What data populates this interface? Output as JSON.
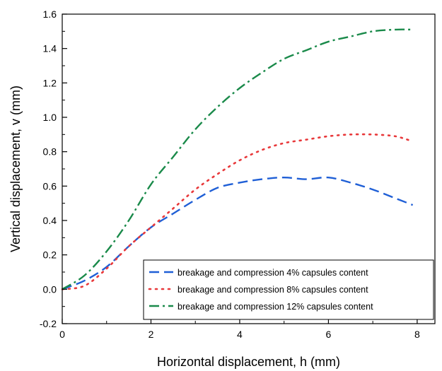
{
  "chart_data": {
    "type": "line",
    "xlabel": "Horizontal displacement, h (mm)",
    "ylabel": "Vertical  displacement, v (mm)",
    "xlim": [
      0,
      8.4
    ],
    "ylim": [
      -0.2,
      1.6
    ],
    "xticks": [
      "0",
      "2",
      "4",
      "6",
      "8"
    ],
    "yticks": [
      "-0.2",
      "0.0",
      "0.2",
      "0.4",
      "0.6",
      "0.8",
      "1.0",
      "1.2",
      "1.4",
      "1.6"
    ],
    "legend_position": "bottom-right",
    "grid": false,
    "series": [
      {
        "name": "breakage and compression 4% capsules content",
        "color": "#1f5fd6",
        "dash": "long-dash",
        "x": [
          0,
          0.5,
          1.0,
          1.5,
          2.0,
          2.5,
          3.0,
          3.5,
          4.0,
          4.5,
          5.0,
          5.5,
          6.0,
          6.5,
          7.0,
          7.5,
          7.9
        ],
        "y": [
          0,
          0.05,
          0.13,
          0.25,
          0.36,
          0.44,
          0.52,
          0.59,
          0.62,
          0.64,
          0.65,
          0.64,
          0.65,
          0.62,
          0.58,
          0.53,
          0.49
        ]
      },
      {
        "name": "breakage and compression 8% capsules content",
        "color": "#e8383a",
        "dash": "dot",
        "x": [
          0,
          0.5,
          1.0,
          1.5,
          2.0,
          2.5,
          3.0,
          3.5,
          4.0,
          4.5,
          5.0,
          5.5,
          6.0,
          6.5,
          7.0,
          7.5,
          7.9
        ],
        "y": [
          0,
          0.02,
          0.12,
          0.25,
          0.36,
          0.47,
          0.58,
          0.67,
          0.75,
          0.81,
          0.85,
          0.87,
          0.89,
          0.9,
          0.9,
          0.89,
          0.86
        ]
      },
      {
        "name": "breakage and compression 12% capsules content",
        "color": "#1a8a4a",
        "dash": "dash-dot",
        "x": [
          0,
          0.5,
          1.0,
          1.5,
          2.0,
          2.5,
          3.0,
          3.5,
          4.0,
          4.5,
          5.0,
          5.5,
          6.0,
          6.5,
          7.0,
          7.5,
          7.9
        ],
        "y": [
          0,
          0.08,
          0.22,
          0.4,
          0.61,
          0.77,
          0.93,
          1.06,
          1.17,
          1.26,
          1.34,
          1.39,
          1.44,
          1.47,
          1.5,
          1.51,
          1.51
        ]
      }
    ]
  }
}
